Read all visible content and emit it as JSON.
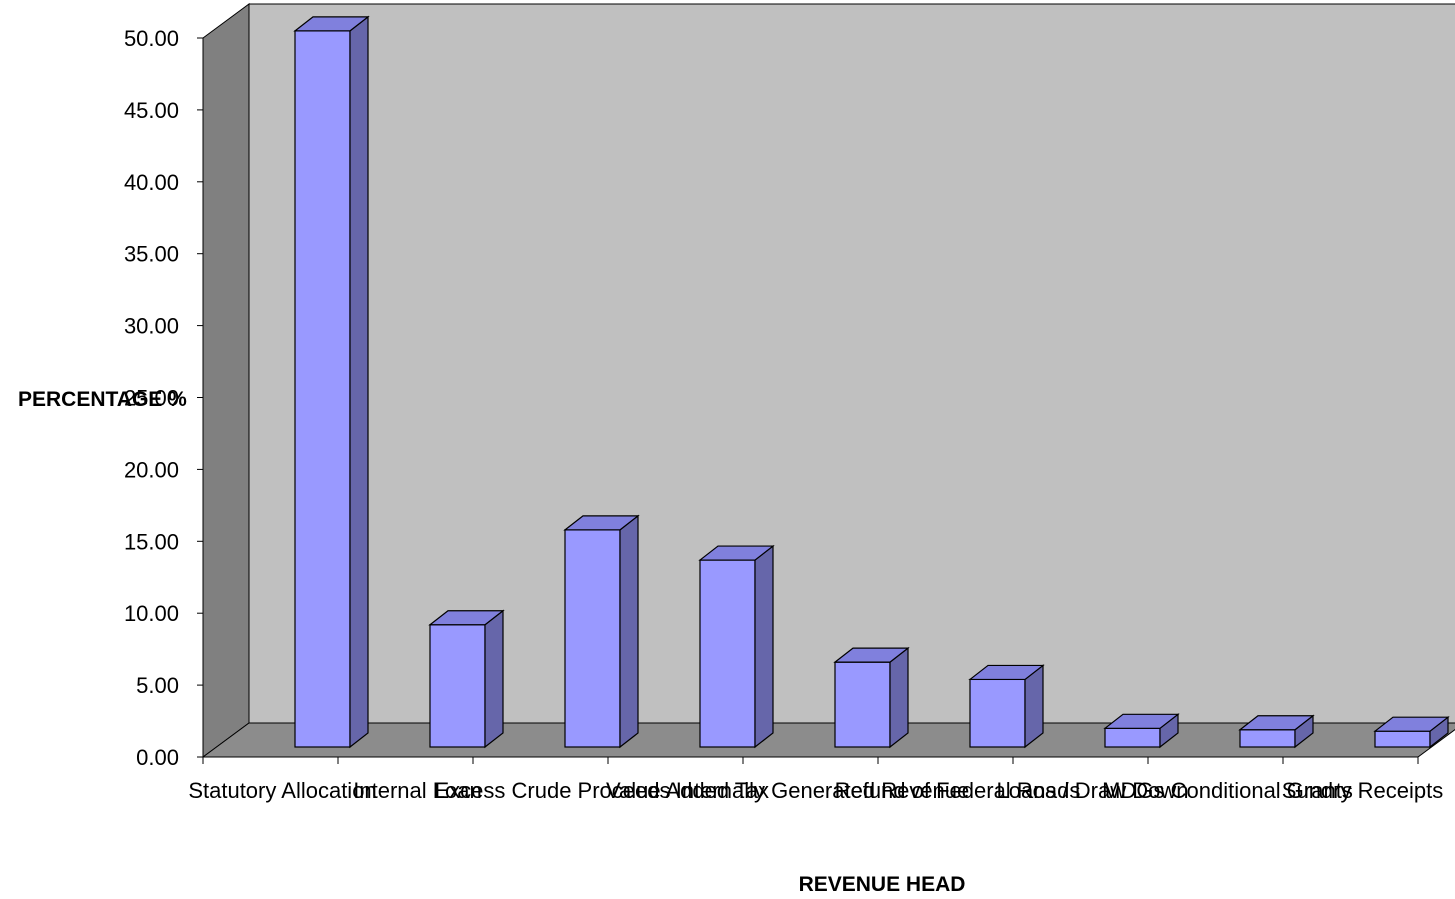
{
  "chart_data": {
    "type": "bar",
    "style": "3d-column",
    "title": "",
    "xlabel": "REVENUE HEAD",
    "ylabel": "PERCENTAGE %",
    "ylim": [
      0,
      50
    ],
    "ytick_step": 5,
    "ytick_labels": [
      "0.00",
      "5.00",
      "10.00",
      "15.00",
      "20.00",
      "25.00",
      "30.00",
      "35.00",
      "40.00",
      "45.00",
      "50.00"
    ],
    "categories": [
      "Statutory Allocation",
      "Internal Loan",
      "Excess Crude Proceeds",
      "Value Added Tax",
      "Internally Generated Revenue",
      "Refund of Federal Roads",
      "Loans / Draw Down",
      "MDGs Conditional Grants",
      "Sundry Receipts"
    ],
    "values": [
      49.8,
      8.5,
      15.1,
      13.0,
      5.9,
      4.7,
      1.3,
      1.2,
      1.1
    ],
    "colors": {
      "bar_front": "#9999ff",
      "bar_side": "#6666aa",
      "bar_top": "#8080dd",
      "back_wall": "#c0c0c0",
      "side_wall": "#808080",
      "floor": "#8c8c8c"
    },
    "grid": false,
    "legend": "none"
  }
}
